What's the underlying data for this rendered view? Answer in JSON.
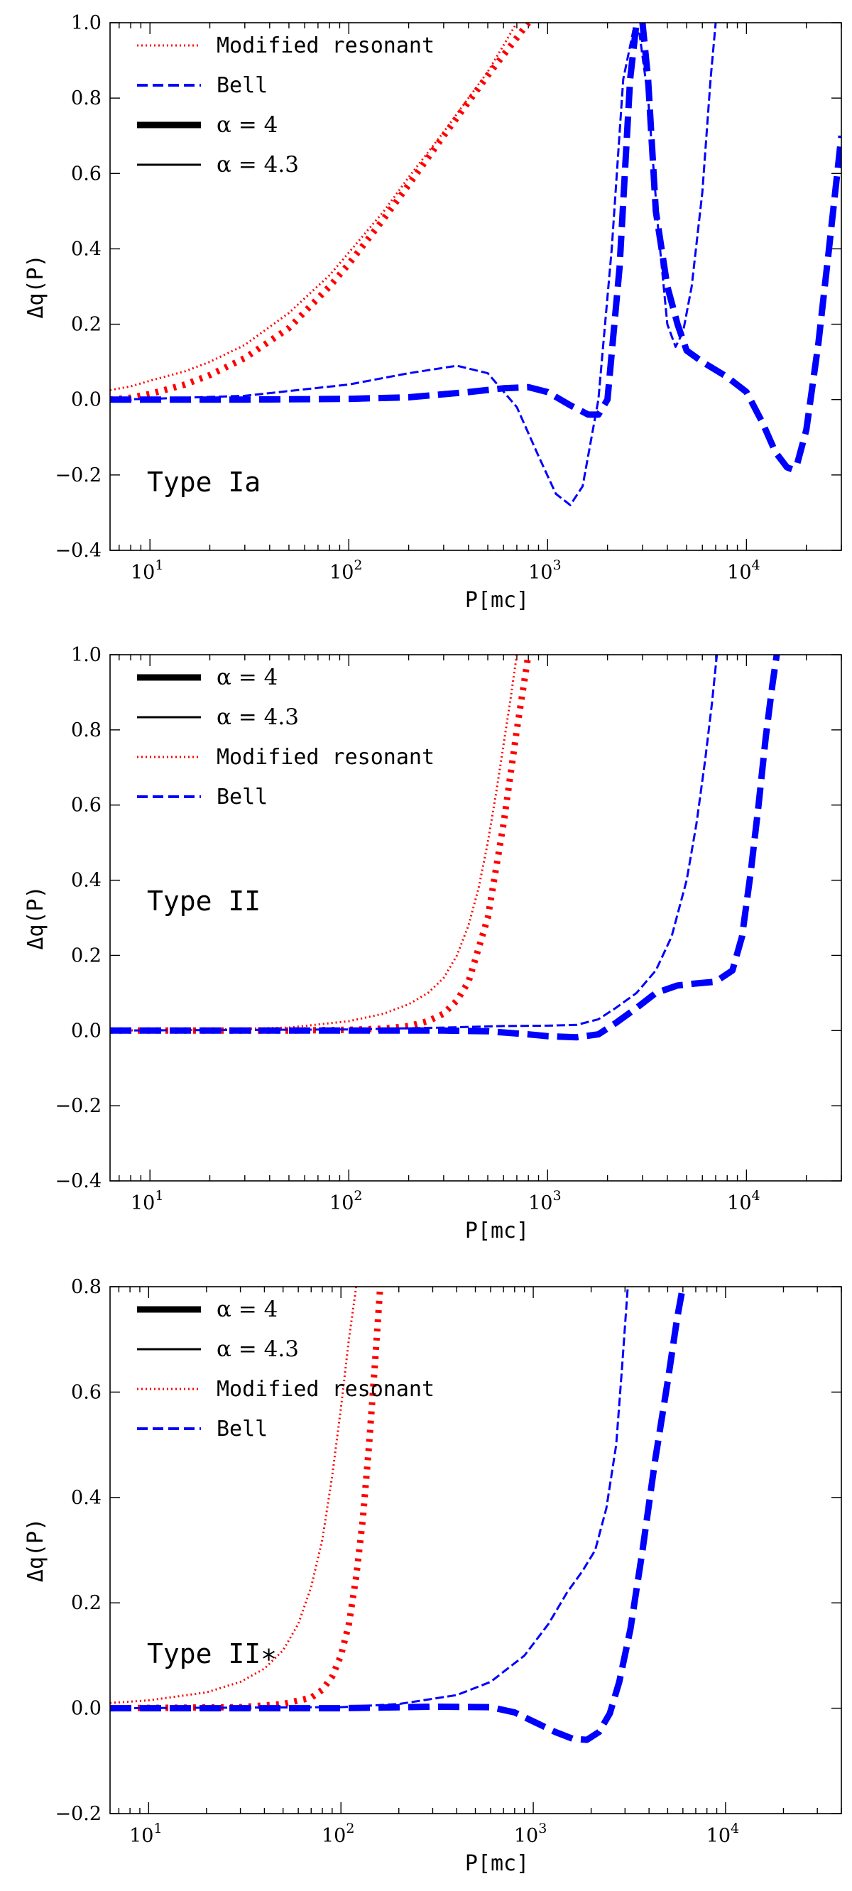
{
  "colors": {
    "modified": "#ff0000",
    "bell": "#0000ff",
    "axis": "#000000"
  },
  "chart_data": [
    {
      "type": "line",
      "title": "",
      "xlabel": "P[mc]",
      "ylabel": "Δq(P)",
      "xscale": "log",
      "xlim": [
        6.3,
        30000
      ],
      "ylim": [
        -0.4,
        1.0
      ],
      "yticks": [
        -0.4,
        -0.2,
        0.0,
        0.2,
        0.4,
        0.6,
        0.8,
        1.0
      ],
      "ytick_labels": [
        "−0.4",
        "−0.2",
        "0.0",
        "0.2",
        "0.4",
        "0.6",
        "0.8",
        "1.0"
      ],
      "xticks": [
        10,
        100,
        1000,
        10000
      ],
      "xtick_bases": [
        "10",
        "10",
        "10",
        "10"
      ],
      "xtick_exps": [
        "1",
        "2",
        "3",
        "4"
      ],
      "annotation": "Type Ia",
      "legend_position": "top-left",
      "legend": [
        {
          "label": "Modified resonant",
          "style": "dotted",
          "color_key": "modified",
          "kind": "text"
        },
        {
          "label": "Bell",
          "style": "dashed",
          "color_key": "bell",
          "kind": "text"
        },
        {
          "label": "α = 4",
          "style": "thick",
          "color_key": "axis",
          "kind": "math"
        },
        {
          "label": "α = 4.3",
          "style": "thin",
          "color_key": "axis",
          "kind": "math"
        }
      ],
      "series": [
        {
          "name": "Modified resonant, α = 4",
          "model": "modified",
          "alpha": "4",
          "x": [
            6.3,
            8,
            10,
            15,
            20,
            30,
            50,
            80,
            100,
            150,
            200,
            300,
            500,
            700,
            800
          ],
          "y": [
            0.0,
            0.005,
            0.015,
            0.04,
            0.065,
            0.11,
            0.19,
            0.3,
            0.36,
            0.48,
            0.57,
            0.7,
            0.86,
            0.96,
            1.0
          ]
        },
        {
          "name": "Modified resonant, α = 4.3",
          "model": "modified",
          "alpha": "4.3",
          "x": [
            6.3,
            8,
            10,
            15,
            20,
            30,
            50,
            80,
            100,
            150,
            200,
            300,
            500,
            600,
            700
          ],
          "y": [
            0.025,
            0.035,
            0.05,
            0.075,
            0.1,
            0.145,
            0.23,
            0.33,
            0.39,
            0.5,
            0.59,
            0.71,
            0.87,
            0.94,
            1.0
          ]
        },
        {
          "name": "Bell, α = 4",
          "model": "bell",
          "alpha": "4",
          "x": [
            6.3,
            10,
            30,
            100,
            200,
            400,
            600,
            800,
            1000,
            1300,
            1600,
            1800,
            2000,
            2300,
            2600,
            2800,
            3000,
            3200,
            3500,
            4000,
            4500,
            5000,
            6000,
            8000,
            10000,
            12000,
            14000,
            16000,
            17000,
            18000,
            20000,
            23000,
            26000,
            30000
          ],
          "y": [
            0.0,
            0.0,
            0.0,
            0.002,
            0.006,
            0.02,
            0.03,
            0.033,
            0.02,
            -0.015,
            -0.04,
            -0.04,
            0.0,
            0.35,
            0.85,
            1.0,
            1.0,
            0.85,
            0.5,
            0.3,
            0.2,
            0.13,
            0.1,
            0.06,
            0.02,
            -0.06,
            -0.14,
            -0.18,
            -0.185,
            -0.17,
            -0.08,
            0.15,
            0.4,
            0.7
          ]
        },
        {
          "name": "Bell, α = 4.3",
          "model": "bell",
          "alpha": "4.3",
          "x": [
            6.3,
            10,
            30,
            100,
            200,
            350,
            500,
            700,
            900,
            1100,
            1300,
            1500,
            1800,
            2100,
            2400,
            2700,
            2900,
            3200,
            3600,
            4000,
            4400,
            4800,
            5300,
            6000,
            6600,
            7000
          ],
          "y": [
            0.0,
            0.002,
            0.01,
            0.04,
            0.07,
            0.09,
            0.07,
            -0.02,
            -0.15,
            -0.25,
            -0.28,
            -0.23,
            0.0,
            0.4,
            0.85,
            0.98,
            0.97,
            0.8,
            0.45,
            0.2,
            0.14,
            0.18,
            0.3,
            0.55,
            0.85,
            1.0
          ]
        }
      ]
    },
    {
      "type": "line",
      "title": "",
      "xlabel": "P[mc]",
      "ylabel": "Δq(P)",
      "xscale": "log",
      "xlim": [
        6.3,
        30000
      ],
      "ylim": [
        -0.4,
        1.0
      ],
      "yticks": [
        -0.4,
        -0.2,
        0.0,
        0.2,
        0.4,
        0.6,
        0.8,
        1.0
      ],
      "ytick_labels": [
        "−0.4",
        "−0.2",
        "0.0",
        "0.2",
        "0.4",
        "0.6",
        "0.8",
        "1.0"
      ],
      "xticks": [
        10,
        100,
        1000,
        10000
      ],
      "xtick_bases": [
        "10",
        "10",
        "10",
        "10"
      ],
      "xtick_exps": [
        "1",
        "2",
        "3",
        "4"
      ],
      "annotation": "Type II",
      "legend_position": "top-left",
      "legend": [
        {
          "label": "α = 4",
          "style": "thick",
          "color_key": "axis",
          "kind": "math"
        },
        {
          "label": "α = 4.3",
          "style": "thin",
          "color_key": "axis",
          "kind": "math"
        },
        {
          "label": "Modified resonant",
          "style": "dotted",
          "color_key": "modified",
          "kind": "text"
        },
        {
          "label": "Bell",
          "style": "dashed",
          "color_key": "bell",
          "kind": "text"
        }
      ],
      "series": [
        {
          "name": "Modified resonant, α = 4",
          "model": "modified",
          "alpha": "4",
          "x": [
            6.3,
            50,
            100,
            150,
            200,
            250,
            300,
            350,
            400,
            500,
            600,
            700,
            800
          ],
          "y": [
            0.0,
            0.0,
            0.002,
            0.005,
            0.012,
            0.025,
            0.045,
            0.08,
            0.13,
            0.3,
            0.55,
            0.8,
            1.0
          ]
        },
        {
          "name": "Modified resonant, α = 4.3",
          "model": "modified",
          "alpha": "4.3",
          "x": [
            6.3,
            20,
            50,
            100,
            150,
            200,
            250,
            300,
            350,
            400,
            450,
            500,
            550,
            600,
            650,
            700
          ],
          "y": [
            0.0,
            0.002,
            0.008,
            0.025,
            0.045,
            0.07,
            0.1,
            0.14,
            0.2,
            0.28,
            0.38,
            0.5,
            0.63,
            0.76,
            0.88,
            1.0
          ]
        },
        {
          "name": "Bell, α = 4",
          "model": "bell",
          "alpha": "4",
          "x": [
            6.3,
            100,
            300,
            500,
            800,
            1000,
            1400,
            1800,
            2200,
            2800,
            3500,
            4500,
            5500,
            7000,
            8500,
            9500,
            10500,
            11500,
            12500,
            13500,
            14200
          ],
          "y": [
            0.0,
            0.0,
            0.0,
            -0.002,
            -0.01,
            -0.015,
            -0.018,
            -0.01,
            0.02,
            0.06,
            0.1,
            0.12,
            0.125,
            0.13,
            0.16,
            0.25,
            0.42,
            0.6,
            0.78,
            0.92,
            1.0
          ]
        },
        {
          "name": "Bell, α = 4.3",
          "model": "bell",
          "alpha": "4.3",
          "x": [
            6.3,
            100,
            300,
            600,
            1000,
            1400,
            1800,
            2200,
            2800,
            3500,
            4200,
            5000,
            5600,
            6200,
            6700,
            7100
          ],
          "y": [
            0.0,
            0.003,
            0.008,
            0.012,
            0.013,
            0.015,
            0.03,
            0.06,
            0.1,
            0.16,
            0.25,
            0.4,
            0.55,
            0.72,
            0.87,
            1.0
          ]
        }
      ]
    },
    {
      "type": "line",
      "title": "",
      "xlabel": "P[mc]",
      "ylabel": "Δq(P)",
      "xscale": "log",
      "xlim": [
        6.3,
        40000
      ],
      "ylim": [
        -0.2,
        0.8
      ],
      "yticks": [
        -0.2,
        0.0,
        0.2,
        0.4,
        0.6,
        0.8
      ],
      "ytick_labels": [
        "−0.2",
        "0.0",
        "0.2",
        "0.4",
        "0.6",
        "0.8"
      ],
      "xticks": [
        10,
        100,
        1000,
        10000
      ],
      "xtick_bases": [
        "10",
        "10",
        "10",
        "10"
      ],
      "xtick_exps": [
        "1",
        "2",
        "3",
        "4"
      ],
      "annotation": "Type II∗",
      "legend_position": "top-left",
      "legend": [
        {
          "label": "α = 4",
          "style": "thick",
          "color_key": "axis",
          "kind": "math"
        },
        {
          "label": "α = 4.3",
          "style": "thin",
          "color_key": "axis",
          "kind": "math"
        },
        {
          "label": "Modified resonant",
          "style": "dotted",
          "color_key": "modified",
          "kind": "text"
        },
        {
          "label": "Bell",
          "style": "dashed",
          "color_key": "bell",
          "kind": "text"
        }
      ],
      "series": [
        {
          "name": "Modified resonant, α = 4",
          "model": "modified",
          "alpha": "4",
          "x": [
            6.3,
            30,
            50,
            70,
            80,
            90,
            100,
            110,
            120,
            130,
            140,
            150,
            160
          ],
          "y": [
            0.0,
            0.002,
            0.008,
            0.02,
            0.035,
            0.06,
            0.1,
            0.16,
            0.25,
            0.36,
            0.5,
            0.65,
            0.8
          ]
        },
        {
          "name": "Modified resonant, α = 4.3",
          "model": "modified",
          "alpha": "4.3",
          "x": [
            6.3,
            10,
            20,
            30,
            40,
            50,
            60,
            70,
            80,
            90,
            100,
            110,
            120
          ],
          "y": [
            0.01,
            0.015,
            0.03,
            0.05,
            0.075,
            0.11,
            0.16,
            0.23,
            0.32,
            0.44,
            0.57,
            0.7,
            0.8
          ]
        },
        {
          "name": "Bell, α = 4",
          "model": "bell",
          "alpha": "4",
          "x": [
            6.3,
            100,
            300,
            600,
            800,
            1000,
            1300,
            1600,
            1900,
            2200,
            2500,
            2800,
            3200,
            3700,
            4300,
            5000,
            5600,
            6000
          ],
          "y": [
            0.0,
            0.0,
            0.003,
            0.002,
            -0.008,
            -0.025,
            -0.045,
            -0.058,
            -0.06,
            -0.045,
            -0.01,
            0.05,
            0.15,
            0.3,
            0.47,
            0.62,
            0.74,
            0.8
          ]
        },
        {
          "name": "Bell, α = 4.3",
          "model": "bell",
          "alpha": "4.3",
          "x": [
            6.3,
            100,
            200,
            400,
            600,
            900,
            1200,
            1500,
            1800,
            2100,
            2400,
            2700,
            2900,
            3100
          ],
          "y": [
            0.0,
            0.002,
            0.008,
            0.025,
            0.05,
            0.1,
            0.16,
            0.22,
            0.26,
            0.3,
            0.38,
            0.5,
            0.65,
            0.8
          ]
        }
      ]
    }
  ]
}
